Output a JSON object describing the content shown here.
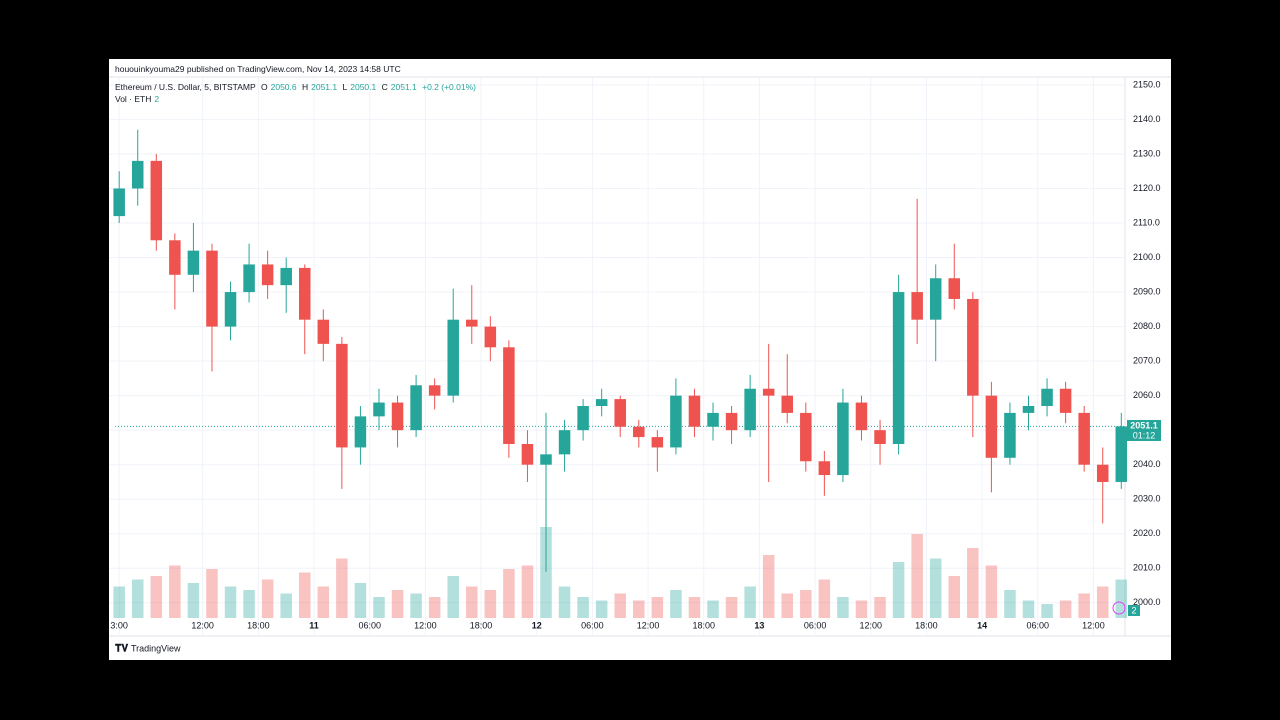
{
  "header": {
    "published": "hououinkyouma29 published on TradingView.com, Nov 14, 2023 14:58 UTC"
  },
  "legend": {
    "symbol": "Ethereum / U.S. Dollar, 5, BITSTAMP",
    "o_label": "O",
    "open": 2050.6,
    "h_label": "H",
    "high": 2051.1,
    "l_label": "L",
    "low": 2050.1,
    "c_label": "C",
    "close": 2051.1,
    "change": "+0.2 (+0.01%)",
    "vol_label": "Vol · ETH",
    "volume": 2
  },
  "countdown": "01:12",
  "footer": {
    "brand": "TradingView"
  },
  "chart_data": {
    "type": "candlestick",
    "up_color": "#26a69a",
    "down_color": "#ef5350",
    "grid": true,
    "xlim": [
      2.55,
      111.4
    ],
    "ylim": [
      1995.6,
      2152
    ],
    "vlim": [
      0,
      400
    ],
    "xticks": [
      {
        "value": 3,
        "label": "3:00"
      },
      {
        "value": 12,
        "label": "12:00"
      },
      {
        "value": 18,
        "label": "18:00"
      },
      {
        "value": 24,
        "label": "11"
      },
      {
        "value": 30,
        "label": "06:00"
      },
      {
        "value": 36,
        "label": "12:00"
      },
      {
        "value": 42,
        "label": "18:00"
      },
      {
        "value": 48,
        "label": "12"
      },
      {
        "value": 54,
        "label": "06:00"
      },
      {
        "value": 60,
        "label": "12:00"
      },
      {
        "value": 66,
        "label": "18:00"
      },
      {
        "value": 72,
        "label": "13"
      },
      {
        "value": 78,
        "label": "06:00"
      },
      {
        "value": 84,
        "label": "12:00"
      },
      {
        "value": 90,
        "label": "18:00"
      },
      {
        "value": 96,
        "label": "14"
      },
      {
        "value": 102,
        "label": "06:00"
      },
      {
        "value": 108,
        "label": "12:00"
      }
    ],
    "yticks": [
      {
        "value": 2000,
        "label": "2000.0"
      },
      {
        "value": 2010,
        "label": "2010.0"
      },
      {
        "value": 2020,
        "label": "2020.0"
      },
      {
        "value": 2030,
        "label": "2030.0"
      },
      {
        "value": 2040,
        "label": "2040.0"
      },
      {
        "value": 2050,
        "label": "2050.0"
      },
      {
        "value": 2060,
        "label": "2060.0"
      },
      {
        "value": 2070,
        "label": "2070.0"
      },
      {
        "value": 2080,
        "label": "2080.0"
      },
      {
        "value": 2090,
        "label": "2090.0"
      },
      {
        "value": 2100,
        "label": "2100.0"
      },
      {
        "value": 2110,
        "label": "2110.0"
      },
      {
        "value": 2120,
        "label": "2120.0"
      },
      {
        "value": 2130,
        "label": "2130.0"
      },
      {
        "value": 2140,
        "label": "2140.0"
      },
      {
        "value": 2150,
        "label": "2150.0"
      }
    ],
    "x": [
      3,
      5,
      7,
      9,
      11,
      13,
      15,
      17,
      19,
      21,
      23,
      25,
      27,
      29,
      31,
      33,
      35,
      37,
      39,
      41,
      43,
      45,
      47,
      49,
      51,
      53,
      55,
      57,
      59,
      61,
      63,
      65,
      67,
      69,
      71,
      73,
      75,
      77,
      79,
      81,
      83,
      85,
      87,
      89,
      91,
      93,
      95,
      97,
      99,
      101,
      103,
      105,
      107,
      109,
      111
    ],
    "open": [
      2112,
      2120,
      2128,
      2105,
      2095,
      2102,
      2080,
      2090,
      2098,
      2092,
      2097,
      2082,
      2075,
      2045,
      2054,
      2058,
      2050,
      2063,
      2060,
      2082,
      2080,
      2074,
      2046,
      2040,
      2043,
      2050,
      2057,
      2059,
      2051,
      2048,
      2045,
      2060,
      2051,
      2055,
      2050,
      2062,
      2060,
      2055,
      2041,
      2037,
      2058,
      2050,
      2046,
      2090,
      2082,
      2094,
      2088,
      2060,
      2042,
      2055,
      2057,
      2062,
      2055,
      2040,
      2035
    ],
    "high": [
      2125,
      2137,
      2130,
      2107,
      2110,
      2104,
      2093,
      2104,
      2102,
      2100,
      2098,
      2085,
      2077,
      2057,
      2062,
      2060,
      2066,
      2065,
      2091,
      2092,
      2083,
      2076,
      2050,
      2055,
      2053,
      2059,
      2062,
      2060,
      2053,
      2050,
      2065,
      2062,
      2058,
      2057,
      2066,
      2075,
      2072,
      2058,
      2044,
      2062,
      2060,
      2053,
      2095,
      2117,
      2098,
      2104,
      2090,
      2064,
      2058,
      2060,
      2065,
      2064,
      2057,
      2045,
      2055
    ],
    "low": [
      2110,
      2115,
      2102,
      2085,
      2090,
      2067,
      2076,
      2087,
      2088,
      2084,
      2072,
      2070,
      2033,
      2040,
      2050,
      2045,
      2048,
      2056,
      2058,
      2075,
      2070,
      2042,
      2035,
      2009,
      2038,
      2047,
      2054,
      2048,
      2045,
      2038,
      2043,
      2048,
      2047,
      2046,
      2048,
      2035,
      2052,
      2038,
      2031,
      2035,
      2047,
      2040,
      2043,
      2075,
      2070,
      2085,
      2048,
      2032,
      2040,
      2050,
      2054,
      2052,
      2038,
      2023,
      2033
    ],
    "close": [
      2120,
      2128,
      2105,
      2095,
      2102,
      2080,
      2090,
      2098,
      2092,
      2097,
      2082,
      2075,
      2045,
      2054,
      2058,
      2050,
      2063,
      2060,
      2082,
      2080,
      2074,
      2046,
      2040,
      2043,
      2050,
      2057,
      2059,
      2051,
      2048,
      2045,
      2060,
      2051,
      2055,
      2050,
      2062,
      2060,
      2055,
      2041,
      2037,
      2058,
      2050,
      2046,
      2090,
      2082,
      2094,
      2088,
      2060,
      2042,
      2055,
      2057,
      2062,
      2055,
      2040,
      2035,
      2051.1
    ],
    "volume": [
      90,
      110,
      120,
      150,
      100,
      140,
      90,
      80,
      110,
      70,
      130,
      90,
      170,
      100,
      60,
      80,
      70,
      60,
      120,
      90,
      80,
      140,
      150,
      260,
      90,
      60,
      50,
      70,
      50,
      60,
      80,
      60,
      50,
      60,
      90,
      180,
      70,
      80,
      110,
      60,
      50,
      60,
      160,
      240,
      170,
      120,
      200,
      150,
      80,
      50,
      40,
      50,
      70,
      90,
      110
    ]
  }
}
